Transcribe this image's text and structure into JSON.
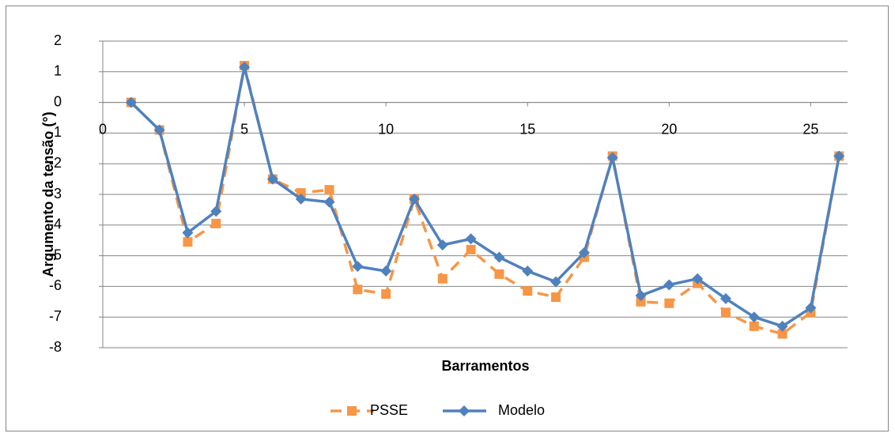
{
  "chart_data": {
    "type": "line",
    "x_label": "Barramentos",
    "y_label": "Argumento da tensão (°)",
    "x": [
      1,
      2,
      3,
      4,
      5,
      6,
      7,
      8,
      9,
      10,
      11,
      12,
      13,
      14,
      15,
      16,
      17,
      18,
      19,
      20,
      21,
      22,
      23,
      24,
      25,
      26
    ],
    "series": [
      {
        "name": "PSSE",
        "color": "#f79646",
        "dashed": true,
        "marker": "square",
        "values": [
          0,
          -0.9,
          -4.55,
          -3.95,
          1.2,
          -2.5,
          -2.95,
          -2.85,
          -6.1,
          -6.25,
          -3.15,
          -5.75,
          -4.8,
          -5.6,
          -6.15,
          -6.35,
          -5.05,
          -1.75,
          -6.5,
          -6.55,
          -5.9,
          -6.85,
          -7.3,
          -7.55,
          -6.85,
          -1.75
        ]
      },
      {
        "name": "Modelo",
        "color": "#4f81bd",
        "dashed": false,
        "marker": "diamond",
        "values": [
          0,
          -0.9,
          -4.25,
          -3.55,
          1.15,
          -2.5,
          -3.15,
          -3.25,
          -5.35,
          -5.5,
          -3.15,
          -4.65,
          -4.45,
          -5.05,
          -5.5,
          -5.85,
          -4.9,
          -1.8,
          -6.3,
          -5.95,
          -5.75,
          -6.4,
          -7.0,
          -7.3,
          -6.7,
          -1.75
        ]
      }
    ],
    "xlim": [
      0,
      26.3
    ],
    "xticks": [
      0,
      5,
      10,
      15,
      20,
      25
    ],
    "ylim": [
      -8,
      2
    ],
    "yticks": [
      -8,
      -7,
      -6,
      -5,
      -4,
      -3,
      -2,
      -1,
      0,
      1,
      2
    ],
    "grid": true,
    "legend": "bottom"
  }
}
